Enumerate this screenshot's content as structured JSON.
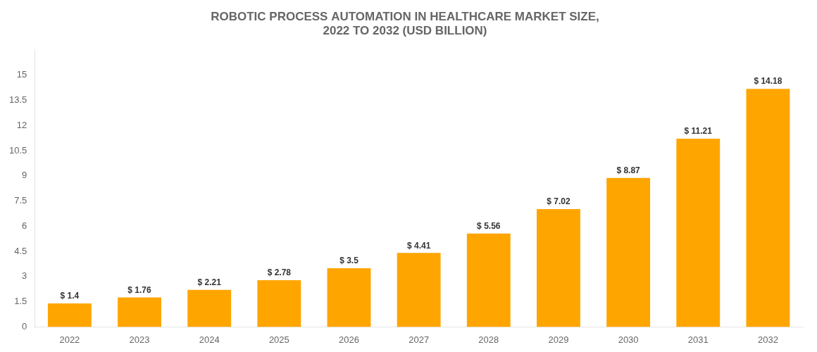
{
  "chart_data": {
    "type": "bar",
    "title": "ROBOTIC PROCESS AUTOMATION IN HEALTHCARE MARKET SIZE,\n2022 TO 2032 (USD BILLION)",
    "categories": [
      "2022",
      "2023",
      "2024",
      "2025",
      "2026",
      "2027",
      "2028",
      "2029",
      "2030",
      "2031",
      "2032"
    ],
    "values": [
      1.4,
      1.76,
      2.21,
      2.78,
      3.5,
      4.41,
      5.56,
      7.02,
      8.87,
      11.21,
      14.18
    ],
    "value_labels": [
      "$ 1.4",
      "$ 1.76",
      "$ 2.21",
      "$ 2.78",
      "$ 3.5",
      "$ 4.41",
      "$ 5.56",
      "$ 7.02",
      "$ 8.87",
      "$ 11.21",
      "$ 14.18"
    ],
    "data_labels": true,
    "color": "#FFA500",
    "ylim": [
      0,
      16.5
    ],
    "yticks": [
      0,
      1.5,
      3,
      4.5,
      6,
      7.5,
      9,
      10.5,
      12,
      13.5,
      15
    ],
    "grid": false
  }
}
